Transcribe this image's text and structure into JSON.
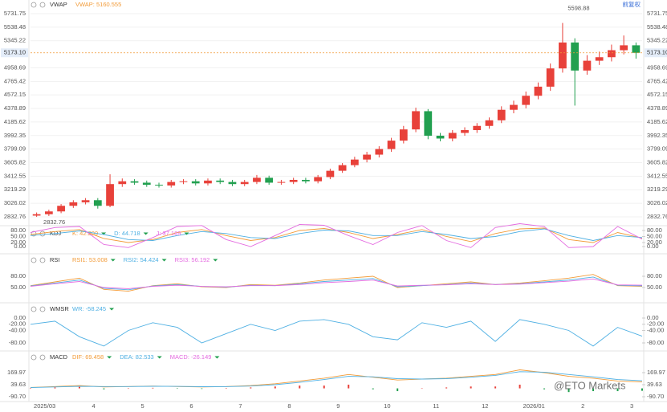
{
  "adjustment": "前复权",
  "watermark": "@ETO Markets",
  "chart_data": [
    {
      "type": "candlestick",
      "title": "VWAP",
      "legend_text": "VWAP: 5160.555",
      "categories": [
        "2025/03",
        null,
        null,
        null,
        "4",
        null,
        null,
        null,
        "5",
        null,
        null,
        null,
        "6",
        null,
        null,
        null,
        "7",
        null,
        null,
        null,
        "8",
        null,
        null,
        null,
        "9",
        null,
        null,
        null,
        "10",
        null,
        null,
        null,
        "11",
        null,
        null,
        null,
        "12",
        null,
        null,
        null,
        "2026/01",
        null,
        null,
        null,
        "2",
        null,
        null,
        null,
        "3",
        null
      ],
      "open": [
        2850,
        2870,
        2910,
        2990,
        3040,
        3070,
        2990,
        3300,
        3340,
        3320,
        3290,
        3280,
        3330,
        3340,
        3310,
        3350,
        3330,
        3300,
        3330,
        3390,
        3320,
        3330,
        3360,
        3340,
        3400,
        3490,
        3570,
        3650,
        3720,
        3800,
        3920,
        4080,
        4340,
        3990,
        3950,
        4030,
        4070,
        4130,
        4210,
        4360,
        4430,
        4560,
        4690,
        4950,
        5320,
        4920,
        5060,
        5110,
        5210,
        5280
      ],
      "high": [
        2895,
        2935,
        3015,
        3070,
        3100,
        3100,
        3440,
        3380,
        3370,
        3350,
        3320,
        3360,
        3370,
        3370,
        3380,
        3380,
        3360,
        3360,
        3430,
        3420,
        3360,
        3390,
        3390,
        3430,
        3520,
        3600,
        3690,
        3760,
        3840,
        3960,
        4130,
        4390,
        4370,
        4030,
        4070,
        4110,
        4170,
        4250,
        4410,
        4490,
        4620,
        4750,
        5020,
        5598.88,
        5380,
        5140,
        5190,
        5290,
        5420,
        5320
      ],
      "low": [
        2832.76,
        2845,
        2885,
        2960,
        3010,
        2950,
        2970,
        3260,
        3290,
        3260,
        3250,
        3250,
        3300,
        3280,
        3280,
        3300,
        3270,
        3270,
        3300,
        3290,
        3290,
        3300,
        3310,
        3310,
        3370,
        3460,
        3540,
        3610,
        3680,
        3760,
        3880,
        4040,
        3940,
        3910,
        3910,
        3990,
        4030,
        4090,
        4170,
        4310,
        4380,
        4510,
        4630,
        4890,
        4420,
        4860,
        5000,
        5050,
        5150,
        5090
      ],
      "close": [
        2870,
        2910,
        2990,
        3040,
        3070,
        2990,
        3300,
        3340,
        3320,
        3290,
        3280,
        3330,
        3340,
        3310,
        3350,
        3330,
        3300,
        3330,
        3390,
        3320,
        3330,
        3360,
        3340,
        3400,
        3490,
        3570,
        3650,
        3720,
        3800,
        3920,
        4080,
        4340,
        3990,
        3950,
        4030,
        4070,
        4130,
        4210,
        4360,
        4430,
        4560,
        4690,
        4950,
        5320,
        4920,
        5060,
        5110,
        5210,
        5280,
        5173.1
      ],
      "up_color": "#e8413a",
      "down_color": "#22a050",
      "ylim": [
        2718,
        5869
      ],
      "yticks": [
        2832.76,
        3026.02,
        3219.29,
        3412.55,
        3605.82,
        3799.09,
        3992.35,
        4185.62,
        4378.89,
        4572.15,
        4765.42,
        4958.69,
        5345.22,
        5538.48,
        5731.75
      ],
      "last_price": {
        "value": 5173.1,
        "label": "5173.10"
      },
      "annotations": [
        5598.88,
        2832.76
      ],
      "grid": true
    },
    {
      "type": "line",
      "title": "KDJ",
      "ylim": [
        -30,
        100
      ],
      "yticks": [
        {
          "value": 0,
          "label": "0.00"
        },
        {
          "value": 20,
          "label": "20.00"
        },
        {
          "value": 50,
          "label": "50.00"
        },
        {
          "value": 80,
          "label": "80.00"
        }
      ],
      "series": [
        {
          "name": "K: 42.209",
          "color": "#f29b38",
          "values": [
            60,
            75,
            85,
            40,
            20,
            35,
            70,
            85,
            55,
            30,
            45,
            80,
            90,
            70,
            40,
            60,
            85,
            50,
            25,
            65,
            88,
            92,
            35,
            20,
            70,
            42.209
          ]
        },
        {
          "name": "D: 44.718",
          "color": "#4fb0e3",
          "values": [
            55,
            65,
            78,
            60,
            35,
            30,
            55,
            75,
            65,
            45,
            40,
            65,
            82,
            78,
            55,
            55,
            75,
            60,
            40,
            50,
            75,
            88,
            55,
            30,
            55,
            44.718
          ]
        },
        {
          "name": "J: 37.189",
          "color": "#e46be0",
          "values": [
            70,
            95,
            100,
            10,
            -5,
            45,
            100,
            105,
            35,
            0,
            55,
            110,
            106,
            55,
            10,
            70,
            105,
            30,
            -5,
            95,
            114,
            100,
            -5,
            0,
            100,
            37.189
          ]
        }
      ]
    },
    {
      "type": "line",
      "title": "RSI",
      "ylim": [
        15,
        130
      ],
      "yticks": [
        {
          "value": 50,
          "label": "50.00"
        },
        {
          "value": 80,
          "label": "80.00"
        }
      ],
      "series": [
        {
          "name": "RSI1: 53.008",
          "color": "#f29b38",
          "values": [
            55,
            65,
            75,
            45,
            40,
            55,
            60,
            52,
            50,
            58,
            56,
            62,
            70,
            75,
            80,
            50,
            55,
            60,
            65,
            58,
            62,
            68,
            75,
            85,
            55,
            53.008
          ]
        },
        {
          "name": "RSI2: 54.424",
          "color": "#4fb0e3",
          "values": [
            54,
            62,
            70,
            48,
            44,
            54,
            58,
            53,
            51,
            56,
            55,
            60,
            66,
            70,
            74,
            52,
            55,
            58,
            62,
            58,
            60,
            65,
            70,
            78,
            56,
            54.424
          ]
        },
        {
          "name": "RSI3: 56.192",
          "color": "#e46be0",
          "values": [
            53,
            60,
            66,
            50,
            47,
            53,
            56,
            53,
            52,
            55,
            55,
            58,
            63,
            66,
            70,
            54,
            56,
            57,
            60,
            58,
            59,
            63,
            67,
            73,
            57,
            56.192
          ]
        }
      ]
    },
    {
      "type": "line",
      "title": "WMSR",
      "ylim": [
        -100,
        40
      ],
      "yticks": [
        {
          "value": 0,
          "label": "0.00"
        },
        {
          "value": -20,
          "label": "-20.00"
        },
        {
          "value": -40,
          "label": "-40.00"
        },
        {
          "value": -80,
          "label": "-80.00"
        }
      ],
      "series": [
        {
          "name": "WR: -58.245",
          "color": "#4fb0e3",
          "values": [
            -20,
            -10,
            -60,
            -90,
            -40,
            -15,
            -30,
            -80,
            -50,
            -20,
            -40,
            -10,
            -5,
            -20,
            -60,
            -70,
            -15,
            -30,
            -10,
            -75,
            -5,
            -20,
            -40,
            -90,
            -30,
            -58.245
          ]
        }
      ]
    },
    {
      "type": "line",
      "title": "MACD",
      "ylim": [
        -140,
        300
      ],
      "yticks": [
        {
          "value": -90.7,
          "label": "-90.70"
        },
        39.63,
        169.97
      ],
      "series": [
        {
          "name": "DIF: 69.458",
          "color": "#f29b38",
          "values": [
            10,
            20,
            30,
            15,
            20,
            25,
            20,
            15,
            20,
            30,
            50,
            80,
            110,
            150,
            120,
            90,
            100,
            110,
            130,
            150,
            200,
            170,
            130,
            110,
            80,
            69.458
          ]
        },
        {
          "name": "DEA: 82.533",
          "color": "#4fb0e3",
          "values": [
            8,
            15,
            22,
            20,
            20,
            22,
            21,
            18,
            19,
            25,
            40,
            65,
            95,
            130,
            125,
            105,
            100,
            105,
            120,
            140,
            180,
            175,
            150,
            125,
            95,
            82.533
          ]
        },
        {
          "name": "MACD: -26.149",
          "color": "#e46be0",
          "style": "bar",
          "up_color": "#e8413a",
          "down_color": "#22a050",
          "values": [
            4,
            10,
            16,
            -10,
            0,
            6,
            -2,
            -6,
            2,
            10,
            20,
            30,
            30,
            40,
            -10,
            -30,
            0,
            10,
            20,
            20,
            40,
            -10,
            -40,
            -30,
            -30,
            -26.149
          ]
        }
      ]
    }
  ]
}
